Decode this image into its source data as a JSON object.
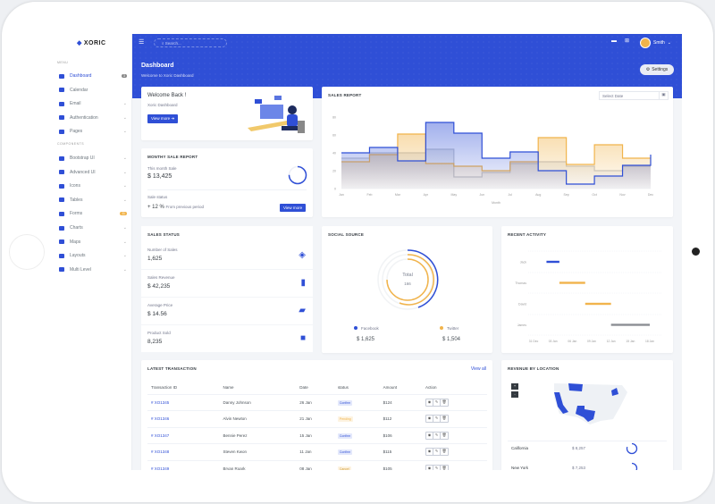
{
  "brand": "XORIC",
  "sidebar": {
    "menu_head": "MENU",
    "components_head": "COMPONENTS",
    "items": [
      {
        "label": "Dashboard",
        "badge": "3",
        "active": true
      },
      {
        "label": "Calendar"
      },
      {
        "label": "Email",
        "chev": true
      },
      {
        "label": "Authentication",
        "chev": true
      },
      {
        "label": "Pages",
        "chev": true
      }
    ],
    "components": [
      {
        "label": "Bootstrap UI",
        "chev": true
      },
      {
        "label": "Advanced UI",
        "chev": true
      },
      {
        "label": "Icons",
        "chev": true
      },
      {
        "label": "Tables",
        "chev": true
      },
      {
        "label": "Forms",
        "badge": "11"
      },
      {
        "label": "Charts",
        "chev": true
      },
      {
        "label": "Maps",
        "chev": true
      },
      {
        "label": "Layouts",
        "chev": true
      },
      {
        "label": "Multi Level",
        "chev": true
      }
    ]
  },
  "topbar": {
    "search_placeholder": "Search...",
    "user": "Smith",
    "page_title": "Dashboard",
    "page_subtitle": "Welcome to Xoric Dashboard",
    "settings": "Settings"
  },
  "welcome": {
    "title": "Welcome Back !",
    "subtitle": "Xoric Dashboard",
    "button": "View more"
  },
  "monthly": {
    "title": "MONTHY SALE REPORT",
    "label": "This month Sale",
    "value": "$ 13,425",
    "status_label": "Sale status",
    "change": "+ 12 %",
    "change_note": "From previous period",
    "button": "View more",
    "progress": 0.75
  },
  "sales_report": {
    "title": "SALES REPORT",
    "date_placeholder": "Select Date"
  },
  "sales_status": {
    "title": "SALES STATUS",
    "items": [
      {
        "label": "Number of Sales",
        "value": "1,625",
        "icon": "layers-icon"
      },
      {
        "label": "Sales Revenue",
        "value": "$ 42,235",
        "icon": "bar-chart-icon"
      },
      {
        "label": "Average Price",
        "value": "$ 14.56",
        "icon": "ticket-icon"
      },
      {
        "label": "Product Sold",
        "value": "8,235",
        "icon": "box-icon"
      }
    ]
  },
  "social": {
    "title": "SOCIAL SOURCE",
    "total_label": "Total",
    "total": "166",
    "sources": [
      {
        "name": "Facebook",
        "value": "$ 1,625",
        "color": "#2f4fd6"
      },
      {
        "name": "Twitter",
        "value": "$ 1,504",
        "color": "#f1b44c"
      }
    ]
  },
  "activity": {
    "title": "RECENT ACTIVITY"
  },
  "transactions": {
    "title": "LATEST TRANSACTION",
    "view_all": "View all",
    "headers": [
      "Transaction ID",
      "Name",
      "Date",
      "status",
      "Amount",
      "Action"
    ],
    "rows": [
      {
        "id": "# XO1345",
        "name": "Danny Johnson",
        "date": "26 Jan",
        "status": "Confirm",
        "amount": "$124"
      },
      {
        "id": "# XO1346",
        "name": "Alvin Newton",
        "date": "21 Jan",
        "status": "Pending",
        "amount": "$112"
      },
      {
        "id": "# XO1347",
        "name": "Bennie Perez",
        "date": "15 Jan",
        "status": "Confirm",
        "amount": "$106"
      },
      {
        "id": "# XO1348",
        "name": "Steven Kwon",
        "date": "11 Jan",
        "status": "Confirm",
        "amount": "$115"
      },
      {
        "id": "# XO1349",
        "name": "Bryan Roark",
        "date": "08 Jan",
        "status": "Cancel",
        "amount": "$105"
      }
    ]
  },
  "revenue": {
    "title": "REVENUE BY LOCATION",
    "zoom_in": "+",
    "zoom_out": "-",
    "locations": [
      {
        "name": "California",
        "value": "$ 8,257",
        "progress": 0.8
      },
      {
        "name": "New York",
        "value": "$ 7,253",
        "progress": 0.6
      }
    ]
  },
  "chart_data": [
    {
      "type": "area",
      "chart": "sales-report",
      "step": true,
      "xlabel": "Month",
      "ylabel": "",
      "ylim": [
        0,
        80
      ],
      "yticks": [
        0,
        20,
        40,
        60,
        80
      ],
      "grid": false,
      "categories": [
        "Jan",
        "Feb",
        "Mar",
        "Apr",
        "May",
        "Jun",
        "Jul",
        "Aug",
        "Sep",
        "Oct",
        "Nov",
        "Dec"
      ],
      "series": [
        {
          "color": "#2f4fd6",
          "values": [
            40,
            46,
            31,
            74,
            62,
            34,
            41,
            20,
            5,
            14,
            26,
            38
          ]
        },
        {
          "color": "#f1b44c",
          "values": [
            30,
            38,
            61,
            28,
            25,
            20,
            30,
            57,
            27,
            49,
            34,
            34
          ]
        },
        {
          "color": "#c4c8d0",
          "values": [
            34,
            40,
            40,
            44,
            13,
            18,
            28,
            30,
            25,
            20,
            25,
            25
          ]
        }
      ]
    },
    {
      "type": "bar",
      "chart": "recent-activity",
      "orientation": "horizontal-range",
      "categories": [
        "Jack",
        "Thomas",
        "David",
        "James"
      ],
      "xticks": [
        "31 Dec",
        "03 Jan",
        "06 Jan",
        "09 Jan",
        "12 Jan",
        "15 Jan",
        "18 Jan"
      ],
      "ranges": [
        [
          "02 Jan",
          "04 Jan"
        ],
        [
          "04 Jan",
          "08 Jan"
        ],
        [
          "08 Jan",
          "12 Jan"
        ],
        [
          "12 Jan",
          "18 Jan"
        ]
      ],
      "colors": [
        "#2f4fd6",
        "#f1b44c",
        "#f1b44c",
        "#8c8f94"
      ]
    },
    {
      "type": "pie",
      "chart": "social-source",
      "style": "radial",
      "series": [
        {
          "name": "Facebook",
          "value": 1625,
          "color": "#2f4fd6"
        },
        {
          "name": "Twitter",
          "value": 1504,
          "color": "#f1b44c"
        }
      ]
    }
  ]
}
